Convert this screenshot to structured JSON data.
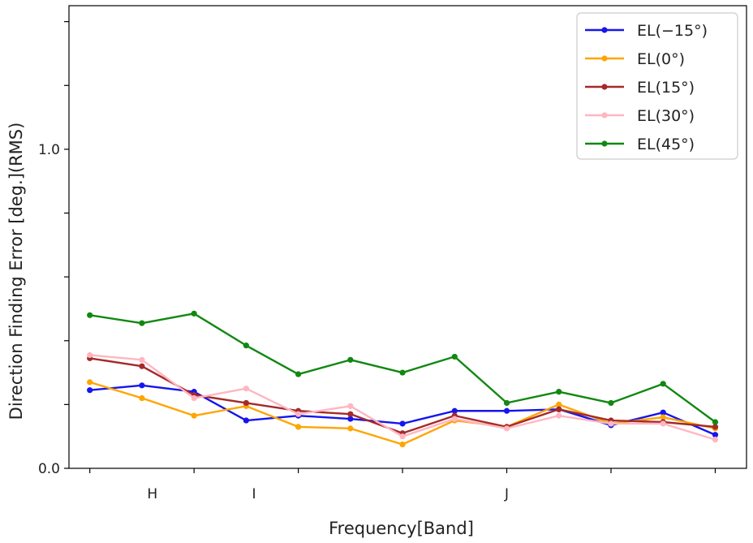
{
  "chart_data": {
    "type": "line",
    "xlabel": "Frequency[Band]",
    "ylabel": "Direction Finding Error [deg.](RMS)",
    "ylim": [
      0.0,
      1.45
    ],
    "xlim": [
      -0.4,
      12.6
    ],
    "yticks": [
      0.0,
      0.2,
      0.4,
      0.6,
      0.8,
      1.0,
      1.2,
      1.4
    ],
    "ytick_labels": [
      "0.0",
      "",
      "",
      "",
      "",
      "1.0",
      "",
      ""
    ],
    "xticks": [
      0,
      2,
      4,
      6,
      8,
      10,
      12
    ],
    "band_labels": [
      {
        "x": 1.2,
        "label": "H"
      },
      {
        "x": 3.15,
        "label": "I"
      },
      {
        "x": 8.0,
        "label": "J"
      }
    ],
    "x": [
      0,
      1,
      2,
      3,
      4,
      5,
      6,
      7,
      8,
      9,
      10,
      11,
      12
    ],
    "grid": false,
    "legend_position": "top-right",
    "series": [
      {
        "name": "EL(−15°)",
        "color": "#1515ee",
        "values": [
          0.245,
          0.26,
          0.24,
          0.15,
          0.165,
          0.155,
          0.14,
          0.18,
          0.18,
          0.185,
          0.135,
          0.175,
          0.105
        ]
      },
      {
        "name": "EL(0°)",
        "color": "#ffa500",
        "values": [
          0.27,
          0.22,
          0.165,
          0.195,
          0.13,
          0.125,
          0.075,
          0.15,
          0.13,
          0.2,
          0.14,
          0.16,
          0.125
        ]
      },
      {
        "name": "EL(15°)",
        "color": "#a52a2a",
        "values": [
          0.345,
          0.32,
          0.23,
          0.205,
          0.18,
          0.17,
          0.11,
          0.165,
          0.13,
          0.185,
          0.15,
          0.145,
          0.13
        ]
      },
      {
        "name": "EL(30°)",
        "color": "#ffb6c1",
        "values": [
          0.355,
          0.34,
          0.22,
          0.25,
          0.17,
          0.195,
          0.1,
          0.155,
          0.125,
          0.165,
          0.14,
          0.14,
          0.09
        ]
      },
      {
        "name": "EL(45°)",
        "color": "#118811",
        "values": [
          0.48,
          0.455,
          0.485,
          0.385,
          0.295,
          0.34,
          0.3,
          0.35,
          0.205,
          0.24,
          0.205,
          0.265,
          0.145
        ]
      }
    ]
  }
}
